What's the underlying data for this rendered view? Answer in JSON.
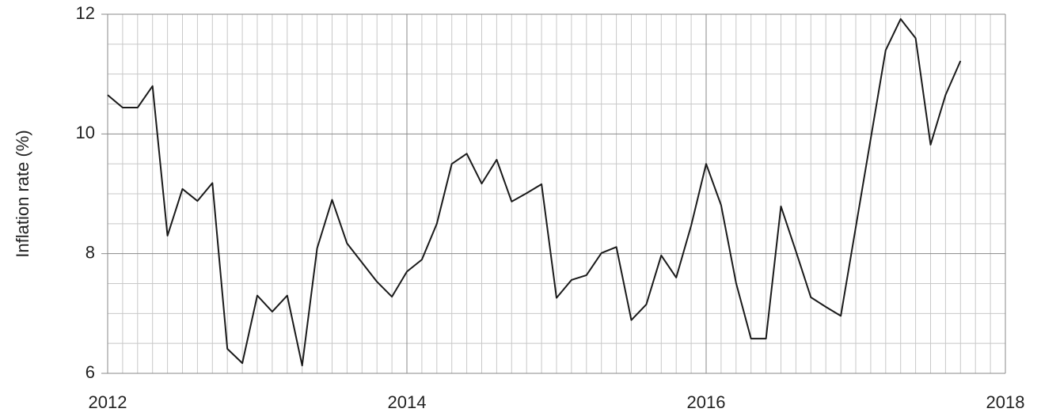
{
  "chart_data": {
    "type": "line",
    "y_label": "Inflation rate (%)",
    "x": [
      2012,
      2012.1,
      2012.2,
      2012.3,
      2012.4,
      2012.5,
      2012.6,
      2012.7,
      2012.8,
      2012.9,
      2013,
      2013.1,
      2013.2,
      2013.3,
      2013.4,
      2013.5,
      2013.6,
      2013.7,
      2013.8,
      2013.9,
      2014,
      2014.1,
      2014.2,
      2014.3,
      2014.4,
      2014.5,
      2014.6,
      2014.7,
      2014.8,
      2014.9,
      2015,
      2015.1,
      2015.2,
      2015.3,
      2015.4,
      2015.5,
      2015.6,
      2015.7,
      2015.8,
      2015.9,
      2016,
      2016.1,
      2016.2,
      2016.3,
      2016.4,
      2016.5,
      2016.6,
      2016.7,
      2016.8,
      2016.9,
      2017,
      2017.1,
      2017.2,
      2017.3,
      2017.4,
      2017.5,
      2017.6,
      2017.7
    ],
    "series": [
      {
        "name": "Inflation rate",
        "color": "#1a1a1a",
        "values": [
          10.65,
          10.44,
          10.44,
          10.8,
          8.3,
          9.08,
          8.88,
          9.18,
          6.41,
          6.17,
          7.3,
          7.03,
          7.3,
          6.13,
          8.09,
          8.9,
          8.17,
          7.85,
          7.53,
          7.28,
          7.7,
          7.9,
          8.5,
          9.5,
          9.67,
          9.17,
          9.57,
          8.87,
          9.01,
          9.16,
          7.26,
          7.56,
          7.64,
          8.01,
          8.11,
          6.89,
          7.15,
          7.97,
          7.6,
          8.47,
          9.5,
          8.81,
          7.51,
          6.58,
          6.58,
          8.79,
          8.04,
          7.27,
          7.11,
          6.96,
          8.44,
          9.92,
          11.4,
          11.92,
          11.6,
          9.82,
          10.65,
          11.22
        ]
      }
    ],
    "xlim": [
      2012,
      2018
    ],
    "xticks": [
      2012,
      2014,
      2016,
      2018
    ],
    "ylim": [
      6,
      12
    ],
    "yticks": [
      6,
      8,
      10,
      12
    ],
    "grid": true
  }
}
